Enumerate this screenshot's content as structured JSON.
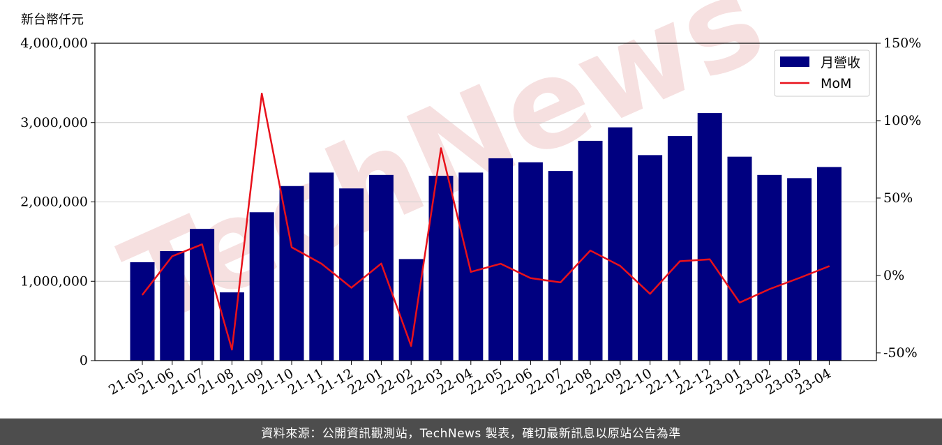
{
  "watermark": "TechNews",
  "y_unit_label": "新台幣仟元",
  "footer_text": "資料來源：公開資訊觀測站，TechNews 製表，確切最新訊息以原站公告為準",
  "colors": {
    "bar": "#000080",
    "line": "#e8111b",
    "grid": "#cccccc",
    "footer_bg": "#4d4d4d",
    "watermark": "#f3d6d6"
  },
  "chart_data": {
    "type": "bar",
    "categories": [
      "21-05",
      "21-06",
      "21-07",
      "21-08",
      "21-09",
      "21-10",
      "21-11",
      "21-12",
      "22-01",
      "22-02",
      "22-03",
      "22-04",
      "22-05",
      "22-06",
      "22-07",
      "22-08",
      "22-09",
      "22-10",
      "22-11",
      "22-12",
      "23-01",
      "23-02",
      "23-03",
      "23-04"
    ],
    "series": [
      {
        "name": "月營收",
        "type": "bar",
        "axis": "left",
        "values": [
          1240000,
          1380000,
          1660000,
          860000,
          1870000,
          2200000,
          2370000,
          2170000,
          2340000,
          1280000,
          2330000,
          2370000,
          2550000,
          2500000,
          2390000,
          2770000,
          2940000,
          2590000,
          2830000,
          3120000,
          2570000,
          2340000,
          2300000,
          2440000
        ]
      },
      {
        "name": "MoM",
        "type": "line",
        "axis": "right",
        "values": [
          -12.5,
          12.4,
          20.1,
          -47.9,
          117.5,
          18.2,
          7.6,
          -7.9,
          7.7,
          -45.6,
          82.2,
          2.3,
          7.6,
          -1.7,
          -4.5,
          16.1,
          6.2,
          -11.9,
          9.2,
          10.4,
          -17.5,
          -8.8,
          -1.6,
          6.0
        ]
      }
    ],
    "y_left": {
      "lim": [
        0,
        4000000
      ],
      "ticks": [
        0,
        1000000,
        2000000,
        3000000,
        4000000
      ],
      "tick_labels": [
        "0",
        "1,000,000",
        "2,000,000",
        "3,000,000",
        "4,000,000"
      ]
    },
    "y_right": {
      "lim": [
        -55,
        150
      ],
      "ticks": [
        -50,
        0,
        50,
        100,
        150
      ],
      "tick_labels": [
        "-50%",
        "0%",
        "50%",
        "100%",
        "150%"
      ]
    },
    "grid": "horizontal",
    "legend": {
      "position": "top-right",
      "entries": [
        "月營收",
        "MoM"
      ]
    }
  }
}
